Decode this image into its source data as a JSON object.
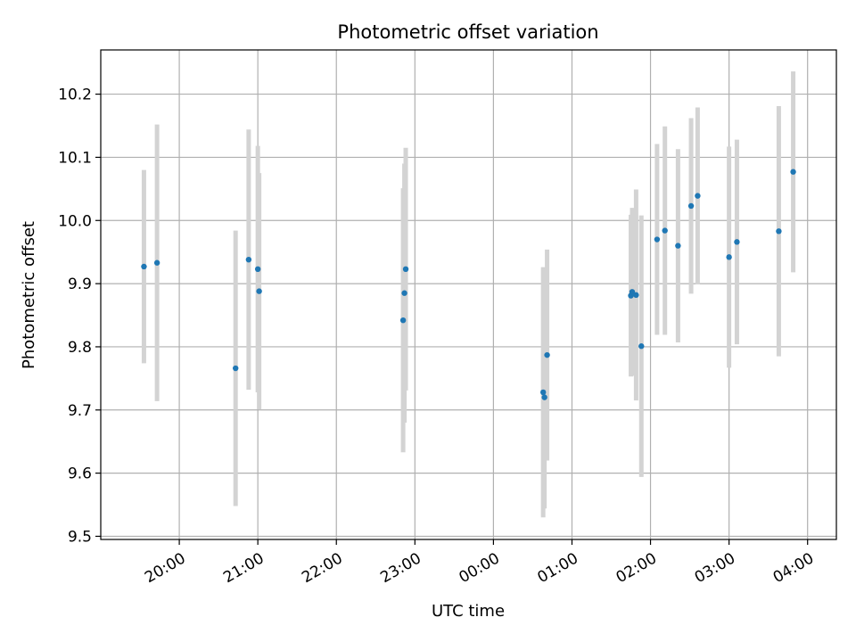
{
  "chart_data": {
    "type": "scatter",
    "title": "Photometric offset variation",
    "xlabel": "UTC time",
    "ylabel": "Photometric offset",
    "x_ticks": [
      "20:00",
      "21:00",
      "22:00",
      "23:00",
      "00:00",
      "01:00",
      "02:00",
      "03:00",
      "04:00"
    ],
    "y_ticks": [
      "9.5",
      "9.6",
      "9.7",
      "9.8",
      "9.9",
      "10.0",
      "10.1",
      "10.2"
    ],
    "ylim": [
      9.495,
      10.27
    ],
    "xlim": [
      "19:00",
      "04:22"
    ],
    "grid": true,
    "colors": {
      "point": "#1f77b4",
      "errorbar": "#d3d3d3",
      "grid": "#b0b0b0",
      "axes": "#000000"
    },
    "points": [
      {
        "x": "19:33",
        "y": 9.927,
        "yerr": 0.153
      },
      {
        "x": "19:43",
        "y": 9.933,
        "yerr": 0.219
      },
      {
        "x": "20:43",
        "y": 9.766,
        "yerr": 0.218
      },
      {
        "x": "20:53",
        "y": 9.938,
        "yerr": 0.206
      },
      {
        "x": "21:00",
        "y": 9.923,
        "yerr": 0.195
      },
      {
        "x": "21:01",
        "y": 9.888,
        "yerr": 0.187
      },
      {
        "x": "22:51",
        "y": 9.842,
        "yerr": 0.209
      },
      {
        "x": "22:52",
        "y": 9.885,
        "yerr": 0.205
      },
      {
        "x": "22:53",
        "y": 9.923,
        "yerr": 0.192
      },
      {
        "x": "00:38",
        "y": 9.728,
        "yerr": 0.198
      },
      {
        "x": "00:39",
        "y": 9.72,
        "yerr": 0.176
      },
      {
        "x": "00:41",
        "y": 9.787,
        "yerr": 0.167
      },
      {
        "x": "01:45",
        "y": 9.881,
        "yerr": 0.128
      },
      {
        "x": "01:46",
        "y": 9.887,
        "yerr": 0.133
      },
      {
        "x": "01:49",
        "y": 9.882,
        "yerr": 0.167
      },
      {
        "x": "01:53",
        "y": 9.801,
        "yerr": 0.207
      },
      {
        "x": "02:05",
        "y": 9.97,
        "yerr": 0.151
      },
      {
        "x": "02:11",
        "y": 9.984,
        "yerr": 0.165
      },
      {
        "x": "02:21",
        "y": 9.96,
        "yerr": 0.153
      },
      {
        "x": "02:31",
        "y": 10.023,
        "yerr": 0.139
      },
      {
        "x": "02:36",
        "y": 10.039,
        "yerr": 0.14
      },
      {
        "x": "03:00",
        "y": 9.942,
        "yerr": 0.175
      },
      {
        "x": "03:06",
        "y": 9.966,
        "yerr": 0.162
      },
      {
        "x": "03:38",
        "y": 9.983,
        "yerr": 0.198
      },
      {
        "x": "03:49",
        "y": 10.077,
        "yerr": 0.159
      }
    ]
  }
}
